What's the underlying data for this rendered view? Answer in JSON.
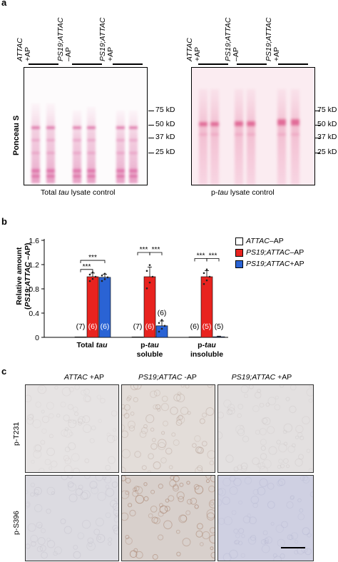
{
  "panel_a": {
    "letter": "a",
    "left_blot": {
      "lanes": [
        {
          "line1": "ATTAC",
          "line2": "+AP"
        },
        {
          "line1": "PS19;ATTAC",
          "line2": "–AP"
        },
        {
          "line1": "PS19;ATTAC",
          "line2": "+AP"
        }
      ],
      "ylabel": "Ponceau S",
      "caption_pre": "Total ",
      "caption_it": "tau",
      "caption_post": " lysate control"
    },
    "right_blot": {
      "lanes": [
        {
          "line1": "ATTAC",
          "line2": "+AP"
        },
        {
          "line1": "PS19;ATTAC",
          "line2": "–AP"
        },
        {
          "line1": "PS19;ATTAC",
          "line2": "+AP"
        }
      ],
      "caption_pre": "p-",
      "caption_it": "tau",
      "caption_post": " lysate control"
    },
    "markers": [
      "75 kD",
      "50 kD",
      "37 kD",
      "25 kD"
    ]
  },
  "panel_b": {
    "letter": "b",
    "legend": [
      {
        "it": "ATTAC",
        "rest": " –AP",
        "color": "#ffffff"
      },
      {
        "it": "PS19;ATTAC",
        "rest": " –AP",
        "color": "#e8231f"
      },
      {
        "it": "PS19;ATTAC",
        "rest": " +AP",
        "color": "#2a63d4"
      }
    ]
  },
  "chart_data": {
    "type": "bar",
    "ylabel_line1": "Relative amount",
    "ylabel_line2": "(PS19;ATTAC –AP)",
    "ylim": [
      0,
      1.6
    ],
    "yticks": [
      "0",
      "0.4",
      "0.8",
      "1.2",
      "1.6"
    ],
    "grid": false,
    "legend_position": "top-right",
    "groups": [
      {
        "line1_pre": "Total ",
        "line1_it": "tau",
        "line1_post": "",
        "line2": ""
      },
      {
        "line1_pre": "p-",
        "line1_it": "tau",
        "line1_post": "",
        "line2": "soluble"
      },
      {
        "line1_pre": "p-",
        "line1_it": "tau",
        "line1_post": "",
        "line2": "insoluble"
      }
    ],
    "series": [
      {
        "name": "ATTAC –AP",
        "color": "#ffffff",
        "values": [
          0.0,
          0.0,
          0.0
        ],
        "errors": [
          0.0,
          0.0,
          0.0
        ],
        "n": [
          "(7)",
          "(7)",
          "(6)"
        ]
      },
      {
        "name": "PS19;ATTAC –AP",
        "color": "#e8231f",
        "values": [
          1.0,
          1.0,
          1.0
        ],
        "errors": [
          0.06,
          0.16,
          0.1
        ],
        "n": [
          "(6)",
          "(6)",
          "(5)"
        ]
      },
      {
        "name": "PS19;ATTAC +AP",
        "color": "#2a63d4",
        "values": [
          0.99,
          0.19,
          0.01
        ],
        "errors": [
          0.05,
          0.08,
          0.01
        ],
        "n": [
          "(6)",
          "(6)",
          "(5)"
        ]
      }
    ],
    "significance": "***"
  },
  "panel_c": {
    "letter": "c",
    "columns": [
      {
        "it": "ATTAC",
        "rest": " +AP"
      },
      {
        "it": "PS19;ATTAC",
        "rest": " -AP"
      },
      {
        "it": "PS19;ATTAC",
        "rest": " +AP"
      }
    ],
    "rows": [
      "p-T231",
      "p-S396"
    ]
  }
}
